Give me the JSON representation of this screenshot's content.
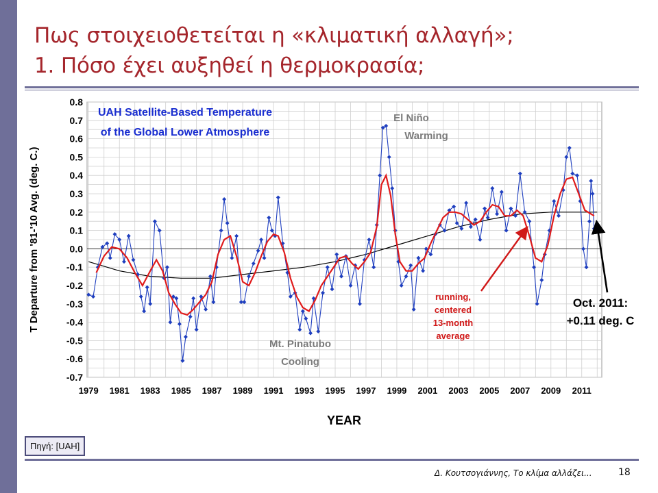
{
  "slide": {
    "title_line1": "Πως στοιχειοθετείται η «κλιματική αλλαγή»;",
    "title_line2": "1. Πόσο έχει αυξηθεί η θερμοκρασία;",
    "source": "Πηγή: [UAH]",
    "footer": "Δ. Κουτσογιάννης, Το κλίμα αλλάζει...",
    "page_number": "18"
  },
  "colors": {
    "accent_bar": "#6f6f99",
    "title": "#a5262c",
    "monthly_series": "#1f3fbf",
    "running_average": "#e01b1b",
    "trend": "#000000",
    "chart_title": "#1a2ed0",
    "annotation_gray": "#7b7b7b",
    "annotation_red": "#d01818"
  },
  "chart_data": {
    "type": "line",
    "title_line1": "UAH Satellite-Based Temperature",
    "title_line2": "of the Global Lower Atmosphere",
    "xlabel": "YEAR",
    "ylabel": "T Departure from '81-'10 Avg. (deg. C.)",
    "xlim": [
      1978.9,
      2012.3
    ],
    "ylim": [
      -0.7,
      0.8
    ],
    "x_ticks": [
      "1979",
      "1981",
      "1983",
      "1985",
      "1987",
      "1989",
      "1991",
      "1993",
      "1995",
      "1997",
      "1999",
      "2001",
      "2003",
      "2005",
      "2007",
      "2009",
      "2011"
    ],
    "y_ticks": [
      "0.8",
      "0.7",
      "0.6",
      "0.5",
      "0.4",
      "0.3",
      "0.2",
      "0.1",
      "0.0",
      "-0.1",
      "-0.2",
      "-0.3",
      "-0.4",
      "-0.5",
      "-0.6",
      "-0.7"
    ],
    "grid": true,
    "series": [
      {
        "key": "monthly",
        "marker": "diamond",
        "points": [
          [
            1979.0,
            -0.25
          ],
          [
            1979.3,
            -0.26
          ],
          [
            1979.6,
            -0.1
          ],
          [
            1979.9,
            0.01
          ],
          [
            1980.2,
            0.03
          ],
          [
            1980.4,
            -0.05
          ],
          [
            1980.7,
            0.08
          ],
          [
            1981.0,
            0.05
          ],
          [
            1981.3,
            -0.07
          ],
          [
            1981.6,
            0.07
          ],
          [
            1981.9,
            -0.06
          ],
          [
            1982.2,
            -0.14
          ],
          [
            1982.4,
            -0.26
          ],
          [
            1982.6,
            -0.34
          ],
          [
            1982.8,
            -0.21
          ],
          [
            1983.0,
            -0.3
          ],
          [
            1983.3,
            0.15
          ],
          [
            1983.6,
            0.1
          ],
          [
            1983.9,
            -0.16
          ],
          [
            1984.1,
            -0.1
          ],
          [
            1984.3,
            -0.4
          ],
          [
            1984.5,
            -0.26
          ],
          [
            1984.7,
            -0.27
          ],
          [
            1984.9,
            -0.41
          ],
          [
            1985.1,
            -0.61
          ],
          [
            1985.3,
            -0.48
          ],
          [
            1985.6,
            -0.37
          ],
          [
            1985.8,
            -0.27
          ],
          [
            1986.0,
            -0.44
          ],
          [
            1986.3,
            -0.26
          ],
          [
            1986.6,
            -0.33
          ],
          [
            1986.9,
            -0.15
          ],
          [
            1987.1,
            -0.29
          ],
          [
            1987.3,
            -0.1
          ],
          [
            1987.6,
            0.1
          ],
          [
            1987.8,
            0.27
          ],
          [
            1988.0,
            0.14
          ],
          [
            1988.3,
            -0.05
          ],
          [
            1988.6,
            0.07
          ],
          [
            1988.9,
            -0.29
          ],
          [
            1989.1,
            -0.29
          ],
          [
            1989.4,
            -0.15
          ],
          [
            1989.7,
            -0.08
          ],
          [
            1990.0,
            -0.01
          ],
          [
            1990.2,
            0.05
          ],
          [
            1990.4,
            -0.05
          ],
          [
            1990.7,
            0.17
          ],
          [
            1990.9,
            0.1
          ],
          [
            1991.1,
            0.07
          ],
          [
            1991.3,
            0.28
          ],
          [
            1991.6,
            0.03
          ],
          [
            1991.9,
            -0.13
          ],
          [
            1992.1,
            -0.26
          ],
          [
            1992.4,
            -0.24
          ],
          [
            1992.7,
            -0.44
          ],
          [
            1992.9,
            -0.34
          ],
          [
            1993.1,
            -0.38
          ],
          [
            1993.4,
            -0.46
          ],
          [
            1993.6,
            -0.27
          ],
          [
            1993.9,
            -0.45
          ],
          [
            1994.2,
            -0.24
          ],
          [
            1994.5,
            -0.1
          ],
          [
            1994.8,
            -0.22
          ],
          [
            1995.1,
            -0.03
          ],
          [
            1995.4,
            -0.15
          ],
          [
            1995.7,
            -0.04
          ],
          [
            1996.0,
            -0.2
          ],
          [
            1996.3,
            -0.09
          ],
          [
            1996.6,
            -0.3
          ],
          [
            1996.9,
            -0.06
          ],
          [
            1997.2,
            0.05
          ],
          [
            1997.5,
            -0.1
          ],
          [
            1997.7,
            0.13
          ],
          [
            1997.9,
            0.4
          ],
          [
            1998.1,
            0.66
          ],
          [
            1998.3,
            0.67
          ],
          [
            1998.5,
            0.5
          ],
          [
            1998.7,
            0.33
          ],
          [
            1998.9,
            0.1
          ],
          [
            1999.1,
            -0.07
          ],
          [
            1999.3,
            -0.2
          ],
          [
            1999.6,
            -0.15
          ],
          [
            1999.9,
            -0.09
          ],
          [
            2000.1,
            -0.33
          ],
          [
            2000.4,
            -0.05
          ],
          [
            2000.7,
            -0.12
          ],
          [
            2000.9,
            0.0
          ],
          [
            2001.2,
            -0.03
          ],
          [
            2001.5,
            0.08
          ],
          [
            2001.8,
            0.13
          ],
          [
            2002.1,
            0.1
          ],
          [
            2002.4,
            0.21
          ],
          [
            2002.7,
            0.23
          ],
          [
            2002.9,
            0.14
          ],
          [
            2003.2,
            0.11
          ],
          [
            2003.5,
            0.25
          ],
          [
            2003.8,
            0.12
          ],
          [
            2004.1,
            0.16
          ],
          [
            2004.4,
            0.05
          ],
          [
            2004.7,
            0.22
          ],
          [
            2004.9,
            0.17
          ],
          [
            2005.2,
            0.33
          ],
          [
            2005.5,
            0.19
          ],
          [
            2005.8,
            0.31
          ],
          [
            2006.1,
            0.1
          ],
          [
            2006.4,
            0.22
          ],
          [
            2006.7,
            0.18
          ],
          [
            2007.0,
            0.41
          ],
          [
            2007.3,
            0.2
          ],
          [
            2007.6,
            0.15
          ],
          [
            2007.9,
            -0.1
          ],
          [
            2008.1,
            -0.3
          ],
          [
            2008.4,
            -0.17
          ],
          [
            2008.6,
            -0.03
          ],
          [
            2008.9,
            0.1
          ],
          [
            2009.2,
            0.26
          ],
          [
            2009.5,
            0.18
          ],
          [
            2009.8,
            0.32
          ],
          [
            2010.0,
            0.5
          ],
          [
            2010.2,
            0.55
          ],
          [
            2010.4,
            0.41
          ],
          [
            2010.7,
            0.4
          ],
          [
            2010.9,
            0.26
          ],
          [
            2011.1,
            0.0
          ],
          [
            2011.3,
            -0.1
          ],
          [
            2011.5,
            0.15
          ],
          [
            2011.6,
            0.37
          ],
          [
            2011.7,
            0.3
          ],
          [
            2011.8,
            0.11
          ]
        ]
      },
      {
        "key": "running_average",
        "label": "running, centered 13-month average",
        "points": [
          [
            1979.5,
            -0.13
          ],
          [
            1980.0,
            -0.04
          ],
          [
            1980.5,
            0.01
          ],
          [
            1981.0,
            0.0
          ],
          [
            1981.5,
            -0.05
          ],
          [
            1982.0,
            -0.13
          ],
          [
            1982.5,
            -0.2
          ],
          [
            1983.0,
            -0.12
          ],
          [
            1983.4,
            -0.06
          ],
          [
            1983.8,
            -0.12
          ],
          [
            1984.2,
            -0.24
          ],
          [
            1984.6,
            -0.3
          ],
          [
            1985.0,
            -0.35
          ],
          [
            1985.4,
            -0.36
          ],
          [
            1985.8,
            -0.33
          ],
          [
            1986.2,
            -0.29
          ],
          [
            1986.6,
            -0.25
          ],
          [
            1987.0,
            -0.18
          ],
          [
            1987.4,
            -0.03
          ],
          [
            1987.8,
            0.05
          ],
          [
            1988.2,
            0.07
          ],
          [
            1988.6,
            -0.04
          ],
          [
            1989.0,
            -0.18
          ],
          [
            1989.4,
            -0.2
          ],
          [
            1989.8,
            -0.13
          ],
          [
            1990.2,
            -0.04
          ],
          [
            1990.6,
            0.04
          ],
          [
            1991.0,
            0.08
          ],
          [
            1991.3,
            0.07
          ],
          [
            1991.7,
            -0.02
          ],
          [
            1992.1,
            -0.16
          ],
          [
            1992.5,
            -0.26
          ],
          [
            1992.9,
            -0.32
          ],
          [
            1993.3,
            -0.34
          ],
          [
            1993.7,
            -0.28
          ],
          [
            1994.1,
            -0.2
          ],
          [
            1994.5,
            -0.15
          ],
          [
            1994.9,
            -0.1
          ],
          [
            1995.3,
            -0.05
          ],
          [
            1995.7,
            -0.04
          ],
          [
            1996.1,
            -0.08
          ],
          [
            1996.5,
            -0.11
          ],
          [
            1996.9,
            -0.07
          ],
          [
            1997.3,
            -0.02
          ],
          [
            1997.7,
            0.12
          ],
          [
            1998.0,
            0.35
          ],
          [
            1998.3,
            0.4
          ],
          [
            1998.6,
            0.29
          ],
          [
            1998.9,
            0.08
          ],
          [
            1999.2,
            -0.07
          ],
          [
            1999.6,
            -0.12
          ],
          [
            2000.0,
            -0.12
          ],
          [
            2000.4,
            -0.08
          ],
          [
            2000.8,
            -0.05
          ],
          [
            2001.2,
            0.03
          ],
          [
            2001.6,
            0.1
          ],
          [
            2002.0,
            0.17
          ],
          [
            2002.4,
            0.2
          ],
          [
            2002.8,
            0.2
          ],
          [
            2003.2,
            0.19
          ],
          [
            2003.6,
            0.16
          ],
          [
            2004.0,
            0.13
          ],
          [
            2004.4,
            0.15
          ],
          [
            2004.8,
            0.2
          ],
          [
            2005.2,
            0.24
          ],
          [
            2005.6,
            0.23
          ],
          [
            2006.0,
            0.18
          ],
          [
            2006.4,
            0.18
          ],
          [
            2006.8,
            0.21
          ],
          [
            2007.2,
            0.18
          ],
          [
            2007.6,
            0.07
          ],
          [
            2008.0,
            -0.05
          ],
          [
            2008.4,
            -0.07
          ],
          [
            2008.8,
            0.02
          ],
          [
            2009.2,
            0.18
          ],
          [
            2009.6,
            0.3
          ],
          [
            2010.0,
            0.38
          ],
          [
            2010.4,
            0.39
          ],
          [
            2010.8,
            0.3
          ],
          [
            2011.2,
            0.21
          ],
          [
            2011.6,
            0.19
          ],
          [
            2011.8,
            0.18
          ]
        ]
      },
      {
        "key": "trend",
        "points": [
          [
            1979.0,
            -0.07
          ],
          [
            1981.0,
            -0.12
          ],
          [
            1983.0,
            -0.15
          ],
          [
            1985.0,
            -0.16
          ],
          [
            1987.0,
            -0.16
          ],
          [
            1989.0,
            -0.14
          ],
          [
            1991.0,
            -0.12
          ],
          [
            1993.0,
            -0.1
          ],
          [
            1995.0,
            -0.07
          ],
          [
            1997.0,
            -0.03
          ],
          [
            1999.0,
            0.02
          ],
          [
            2001.0,
            0.07
          ],
          [
            2003.0,
            0.12
          ],
          [
            2005.0,
            0.16
          ],
          [
            2007.0,
            0.19
          ],
          [
            2009.0,
            0.2
          ],
          [
            2011.0,
            0.2
          ],
          [
            2012.0,
            0.2
          ]
        ]
      }
    ],
    "annotations": {
      "el_nino": [
        "El Niño",
        "Warming"
      ],
      "pinatubo": [
        "Mt. Pinatubo",
        "Cooling"
      ],
      "running_label": [
        "running,",
        "centered",
        "13-month",
        "average"
      ],
      "latest_label": [
        "Oct. 2011:",
        "+0.11 deg. C"
      ],
      "latest_point": [
        2011.8,
        0.11
      ],
      "running_arrow_target": [
        2007.4,
        0.11
      ]
    }
  }
}
